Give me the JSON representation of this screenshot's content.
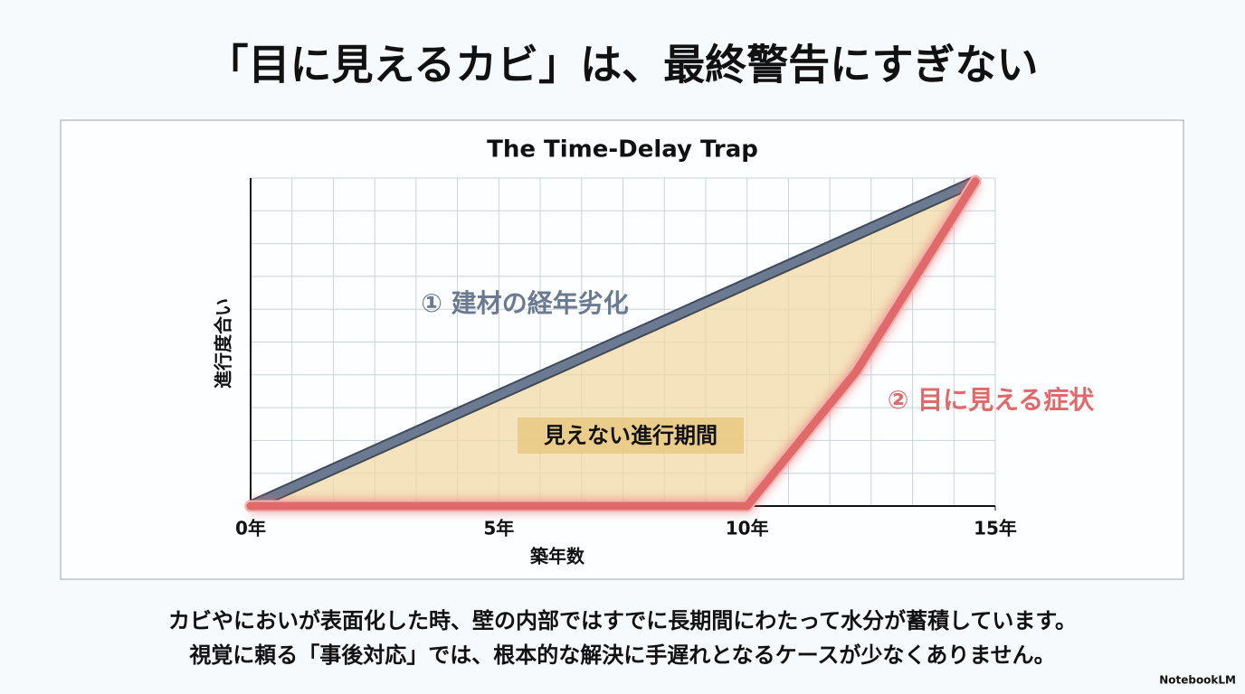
{
  "header": {
    "title": "「目に見えるカビ」は、最終警告にすぎない"
  },
  "chart_data": {
    "type": "line",
    "title": "The Time-Delay Trap",
    "xlabel": "築年数",
    "ylabel": "進行度合い",
    "xlim": [
      0,
      15
    ],
    "ylim": [
      0,
      100
    ],
    "xticks": [
      {
        "value": 0,
        "label": "0年"
      },
      {
        "value": 5,
        "label": "5年"
      },
      {
        "value": 10,
        "label": "10年"
      },
      {
        "value": 15,
        "label": "15年"
      }
    ],
    "grid": true,
    "series": [
      {
        "name": "① 建材の経年劣化",
        "color": "#6b7a90",
        "x": [
          0,
          14.6
        ],
        "values": [
          0,
          99
        ]
      },
      {
        "name": "② 目に見える症状",
        "color": "#e06a6a",
        "x": [
          0,
          10,
          12.2,
          14.6
        ],
        "values": [
          0,
          0,
          41,
          99
        ]
      }
    ],
    "annotations": [
      "見えない進行期間"
    ]
  },
  "body": {
    "lines": [
      "カビやにおいが表面化した時、壁の内部ではすでに長期間にわたって水分が蓄積しています。",
      "視覚に頼る「事後対応」では、根本的な解決に手遅れとなるケースが少なくありません。"
    ]
  },
  "footer": {
    "brand": "NotebookLM"
  }
}
